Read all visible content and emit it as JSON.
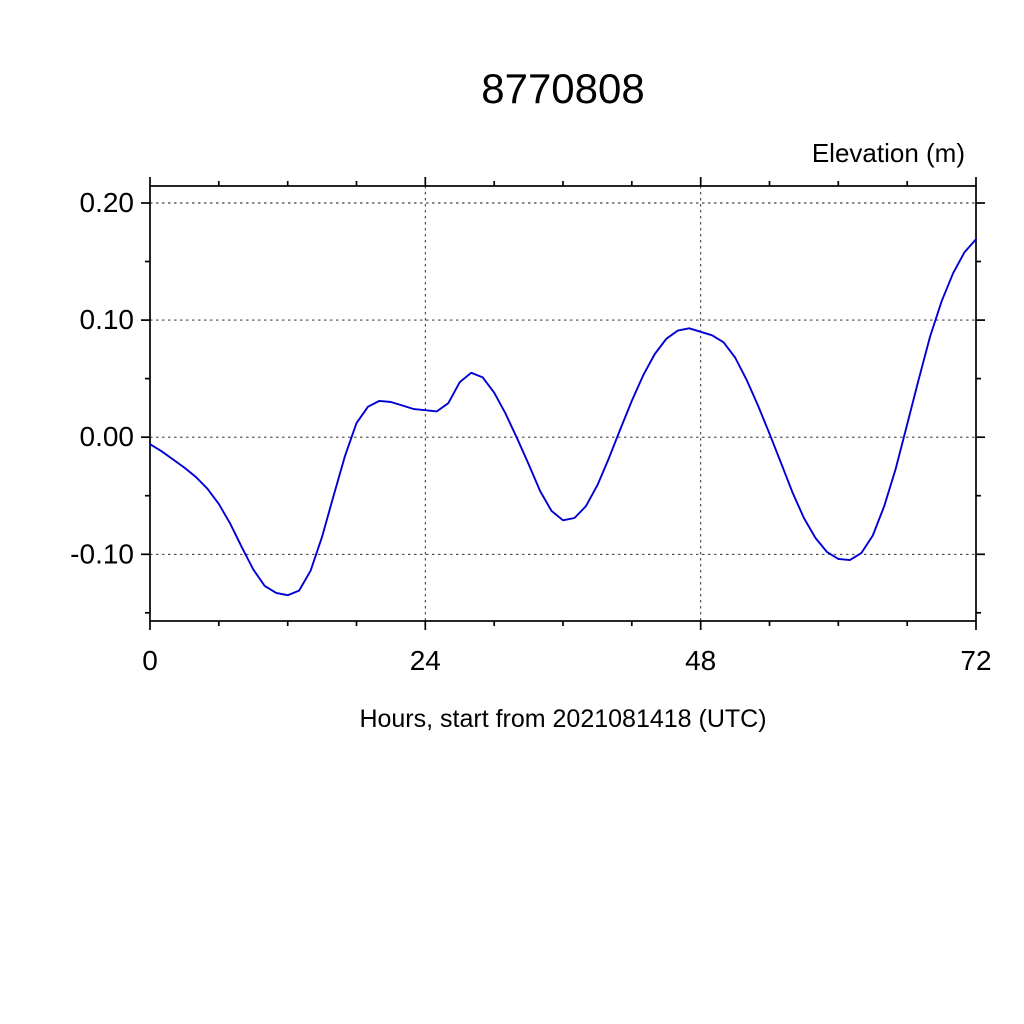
{
  "header": {
    "title": "8770808",
    "unit_label": "Elevation (m)"
  },
  "chart_data": {
    "type": "line",
    "title": "8770808",
    "ylabel": "Elevation (m)",
    "xlabel": "Hours, start from 2021081418 (UTC)",
    "xlim": [
      0,
      72
    ],
    "ylim": [
      -0.157,
      0.2145
    ],
    "xticks": [
      0,
      24,
      48,
      72
    ],
    "xtick_labels": [
      "0",
      "24",
      "48",
      "72"
    ],
    "yticks": [
      -0.1,
      0.0,
      0.1,
      0.2
    ],
    "ytick_labels": [
      "-0.10",
      "0.00",
      "0.10",
      "0.20"
    ],
    "x_minor_ticks": [
      6,
      12,
      18,
      30,
      36,
      42,
      54,
      60,
      66
    ],
    "y_minor_ticks": [
      -0.15,
      -0.05,
      0.05,
      0.15
    ],
    "grid": true,
    "legend": "none",
    "line_color": "#0000d5",
    "series": [
      {
        "name": "elevation",
        "x": [
          0,
          1,
          2,
          3,
          4,
          5,
          6,
          7,
          8,
          9,
          10,
          11,
          12,
          13,
          14,
          15,
          16,
          17,
          18,
          19,
          20,
          21,
          22,
          23,
          24,
          25,
          26,
          27,
          28,
          29,
          30,
          31,
          32,
          33,
          34,
          35,
          36,
          37,
          38,
          39,
          40,
          41,
          42,
          43,
          44,
          45,
          46,
          47,
          48,
          49,
          50,
          51,
          52,
          53,
          54,
          55,
          56,
          57,
          58,
          59,
          60,
          61,
          62,
          63,
          64,
          65,
          66,
          67,
          68,
          69,
          70,
          71,
          72
        ],
        "y": [
          -0.006,
          -0.012,
          -0.019,
          -0.026,
          -0.034,
          -0.044,
          -0.057,
          -0.074,
          -0.094,
          -0.113,
          -0.127,
          -0.133,
          -0.135,
          -0.131,
          -0.114,
          -0.085,
          -0.05,
          -0.016,
          0.012,
          0.026,
          0.031,
          0.03,
          0.027,
          0.024,
          0.023,
          0.022,
          0.029,
          0.047,
          0.055,
          0.051,
          0.038,
          0.02,
          -0.001,
          -0.023,
          -0.046,
          -0.063,
          -0.071,
          -0.069,
          -0.059,
          -0.041,
          -0.018,
          0.007,
          0.031,
          0.053,
          0.071,
          0.084,
          0.091,
          0.093,
          0.09,
          0.087,
          0.081,
          0.068,
          0.049,
          0.027,
          0.003,
          -0.022,
          -0.047,
          -0.069,
          -0.086,
          -0.098,
          -0.104,
          -0.105,
          -0.099,
          -0.084,
          -0.059,
          -0.027,
          0.011,
          0.049,
          0.086,
          0.116,
          0.14,
          0.158,
          0.169
        ]
      }
    ]
  }
}
